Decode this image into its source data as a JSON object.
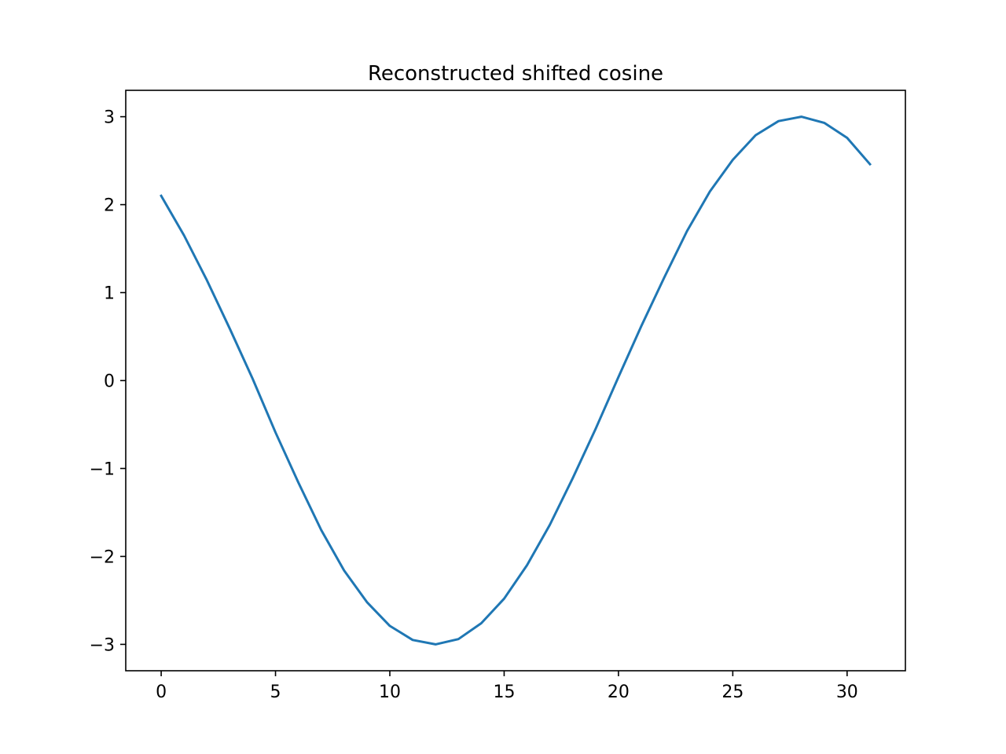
{
  "chart_data": {
    "type": "line",
    "title": "Reconstructed shifted cosine",
    "xlabel": "",
    "ylabel": "",
    "xlim": [
      -1.55,
      32.55
    ],
    "ylim": [
      -3.3,
      3.3
    ],
    "x_ticks": [
      0,
      5,
      10,
      15,
      20,
      25,
      30
    ],
    "x_tick_labels": [
      "0",
      "5",
      "10",
      "15",
      "20",
      "25",
      "30"
    ],
    "y_ticks": [
      -3,
      -2,
      -1,
      0,
      1,
      2,
      3
    ],
    "y_tick_labels": [
      "−3",
      "−2",
      "−1",
      "0",
      "1",
      "2",
      "3"
    ],
    "grid": false,
    "legend": "none",
    "series": [
      {
        "color": "#1f77b4",
        "x": [
          0,
          1,
          2,
          3,
          4,
          5,
          6,
          7,
          8,
          9,
          10,
          11,
          12,
          13,
          14,
          15,
          16,
          17,
          18,
          19,
          20,
          21,
          22,
          23,
          24,
          25,
          26,
          27,
          28,
          29,
          30,
          31
        ],
        "values": [
          2.1,
          1.65,
          1.14,
          0.59,
          0.02,
          -0.59,
          -1.16,
          -1.7,
          -2.16,
          -2.52,
          -2.79,
          -2.95,
          -3.0,
          -2.94,
          -2.76,
          -2.48,
          -2.1,
          -1.64,
          -1.11,
          -0.55,
          0.04,
          0.62,
          1.17,
          1.7,
          2.15,
          2.51,
          2.79,
          2.95,
          3.0,
          2.93,
          2.76,
          2.46
        ]
      }
    ]
  }
}
